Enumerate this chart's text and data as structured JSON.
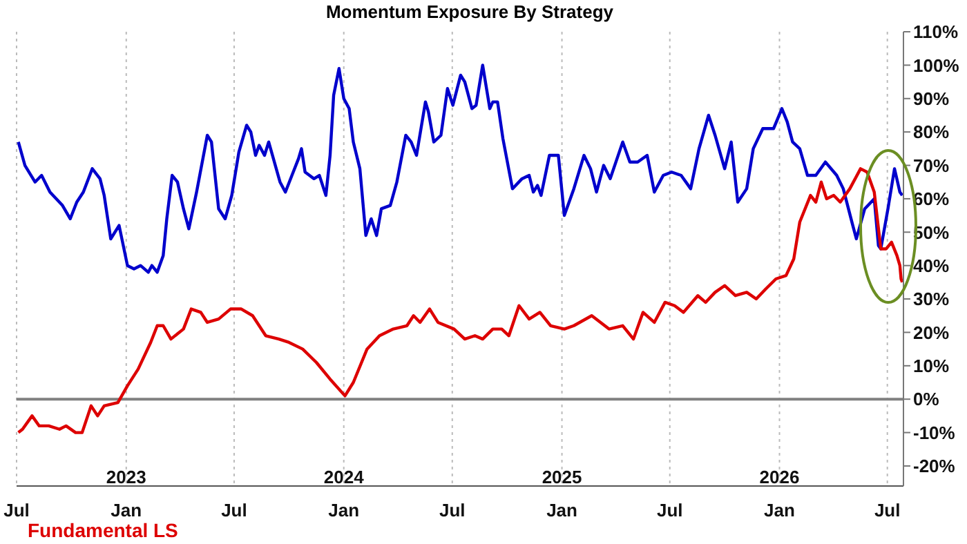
{
  "chart_data": {
    "type": "line",
    "title": "Momentum Exposure By Strategy",
    "xlim": [
      "2022-07-01",
      "2026-07-28"
    ],
    "xticks": [
      {
        "value": "2022-07-01",
        "label": "Jul"
      },
      {
        "value": "2023-01-01",
        "label": "Jan"
      },
      {
        "value": "2023-07-01",
        "label": "Jul"
      },
      {
        "value": "2024-01-01",
        "label": "Jan"
      },
      {
        "value": "2024-07-01",
        "label": "Jul"
      },
      {
        "value": "2025-01-01",
        "label": "Jan"
      },
      {
        "value": "2025-07-01",
        "label": "Jul"
      },
      {
        "value": "2026-01-01",
        "label": "Jan"
      },
      {
        "value": "2026-07-01",
        "label": "Jul"
      }
    ],
    "x2lim": [
      "2022-07-01",
      "2026-07-28"
    ],
    "x2ticks": [
      {
        "value": "2023-01-01",
        "label": "2023"
      },
      {
        "value": "2024-01-01",
        "label": "2024"
      },
      {
        "value": "2025-01-01",
        "label": "2025"
      },
      {
        "value": "2026-01-01",
        "label": "2026"
      }
    ],
    "ylim": [
      -26,
      110
    ],
    "yticks": [
      {
        "value": -20,
        "label": "-20%"
      },
      {
        "value": -10,
        "label": "-10%"
      },
      {
        "value": 0,
        "label": "0%"
      },
      {
        "value": 10,
        "label": "10%"
      },
      {
        "value": 20,
        "label": "20%"
      },
      {
        "value": 30,
        "label": "30%"
      },
      {
        "value": 40,
        "label": "40%"
      },
      {
        "value": 50,
        "label": "50%"
      },
      {
        "value": 60,
        "label": "60%"
      },
      {
        "value": 70,
        "label": "70%"
      },
      {
        "value": 80,
        "label": "80%"
      },
      {
        "value": 90,
        "label": "90%"
      },
      {
        "value": 100,
        "label": "100%"
      },
      {
        "value": 110,
        "label": "110%"
      }
    ],
    "grid": "x",
    "legend": "bottom left",
    "tick_labels": "xy",
    "ref_lines": [
      {
        "axis": "y",
        "value": 0,
        "color": "#808080"
      }
    ],
    "series": [
      {
        "color": "#0000cc",
        "x": [
          "2022-07-04",
          "2022-07-15",
          "2022-08-01",
          "2022-08-12",
          "2022-08-26",
          "2022-09-16",
          "2022-09-29",
          "2022-10-10",
          "2022-10-21",
          "2022-11-05",
          "2022-11-18",
          "2022-11-25",
          "2022-12-06",
          "2022-12-20",
          "2023-01-03",
          "2023-01-14",
          "2023-01-25",
          "2023-02-07",
          "2023-02-13",
          "2023-02-22",
          "2023-03-04",
          "2023-03-10",
          "2023-03-19",
          "2023-03-28",
          "2023-04-07",
          "2023-04-16",
          "2023-04-29",
          "2023-05-17",
          "2023-05-24",
          "2023-06-05",
          "2023-06-16",
          "2023-06-27",
          "2023-07-09",
          "2023-07-22",
          "2023-07-29",
          "2023-08-06",
          "2023-08-12",
          "2023-08-21",
          "2023-08-28",
          "2023-09-16",
          "2023-09-25",
          "2023-10-06",
          "2023-10-17",
          "2023-10-22",
          "2023-10-28",
          "2023-11-12",
          "2023-11-21",
          "2023-12-02",
          "2023-12-09",
          "2023-12-15",
          "2023-12-24",
          "2024-01-01",
          "2024-01-10",
          "2024-01-17",
          "2024-01-28",
          "2024-02-07",
          "2024-02-16",
          "2024-02-25",
          "2024-03-04",
          "2024-03-19",
          "2024-03-30",
          "2024-04-14",
          "2024-04-23",
          "2024-05-02",
          "2024-05-17",
          "2024-05-22",
          "2024-05-31",
          "2024-06-12",
          "2024-06-23",
          "2024-07-02",
          "2024-07-15",
          "2024-07-22",
          "2024-08-03",
          "2024-08-10",
          "2024-08-21",
          "2024-09-02",
          "2024-09-07",
          "2024-09-15",
          "2024-09-24",
          "2024-10-10",
          "2024-10-26",
          "2024-11-07",
          "2024-11-14",
          "2024-11-21",
          "2024-11-27",
          "2024-12-11",
          "2024-12-17",
          "2024-12-26",
          "2025-01-05",
          "2025-01-21",
          "2025-02-07",
          "2025-02-18",
          "2025-02-28",
          "2025-03-12",
          "2025-03-23",
          "2025-04-13",
          "2025-04-25",
          "2025-05-08",
          "2025-05-24",
          "2025-06-05",
          "2025-06-20",
          "2025-07-04",
          "2025-07-20",
          "2025-08-05",
          "2025-08-19",
          "2025-09-04",
          "2025-09-15",
          "2025-10-01",
          "2025-10-12",
          "2025-10-23",
          "2025-11-07",
          "2025-11-18",
          "2025-12-04",
          "2025-12-22",
          "2026-01-05",
          "2026-01-14",
          "2026-01-23",
          "2026-02-04",
          "2026-02-17",
          "2026-03-03",
          "2026-03-19",
          "2026-04-07",
          "2026-04-18",
          "2026-05-04",
          "2026-05-10",
          "2026-05-24",
          "2026-06-09",
          "2026-06-16",
          "2026-06-20",
          "2026-07-02",
          "2026-07-13",
          "2026-07-22",
          "2026-07-26"
        ],
        "values": [
          77,
          70,
          65,
          67,
          62,
          58,
          54,
          59,
          62,
          69,
          66,
          61,
          48,
          52,
          40,
          39,
          40,
          38,
          40,
          38,
          43,
          54,
          67,
          65,
          57,
          51,
          62,
          79,
          77,
          57,
          54,
          61,
          74,
          82,
          80,
          73,
          76,
          73,
          77,
          65,
          62,
          67,
          72,
          75,
          68,
          66,
          67,
          61,
          73,
          91,
          99,
          90,
          87,
          77,
          69,
          49,
          54,
          49,
          57,
          58,
          65,
          79,
          77,
          73,
          89,
          86,
          77,
          79,
          93,
          88,
          97,
          95,
          87,
          88,
          100,
          87,
          89,
          89,
          78,
          63,
          66,
          67,
          62,
          64,
          61,
          73,
          73,
          73,
          55,
          63,
          73,
          69,
          62,
          70,
          66,
          77,
          71,
          71,
          73,
          62,
          67,
          68,
          67,
          63,
          75,
          85,
          79,
          69,
          77,
          59,
          63,
          75,
          81,
          81,
          87,
          83,
          77,
          75,
          67,
          67,
          71,
          67,
          63,
          52,
          48,
          57,
          60,
          46,
          45,
          57,
          69,
          62,
          61
        ]
      },
      {
        "name": "Fundamental LS",
        "color": "#dd0000",
        "x": [
          "2022-07-04",
          "2022-07-11",
          "2022-07-27",
          "2022-08-08",
          "2022-08-24",
          "2022-09-11",
          "2022-09-22",
          "2022-10-08",
          "2022-10-19",
          "2022-11-03",
          "2022-11-14",
          "2022-11-25",
          "2022-12-18",
          "2023-01-03",
          "2023-01-21",
          "2023-02-11",
          "2023-02-22",
          "2023-03-04",
          "2023-03-17",
          "2023-04-07",
          "2023-04-20",
          "2023-05-06",
          "2023-05-17",
          "2023-06-05",
          "2023-06-25",
          "2023-07-13",
          "2023-08-01",
          "2023-08-23",
          "2023-09-14",
          "2023-10-01",
          "2023-10-24",
          "2023-11-16",
          "2023-12-09",
          "2024-01-03",
          "2024-01-17",
          "2024-02-09",
          "2024-03-01",
          "2024-03-24",
          "2024-04-16",
          "2024-04-27",
          "2024-05-08",
          "2024-05-24",
          "2024-06-07",
          "2024-07-04",
          "2024-07-22",
          "2024-08-08",
          "2024-08-21",
          "2024-09-07",
          "2024-09-22",
          "2024-10-04",
          "2024-10-21",
          "2024-11-07",
          "2024-11-25",
          "2024-12-13",
          "2025-01-05",
          "2025-01-21",
          "2025-02-20",
          "2025-03-21",
          "2025-04-13",
          "2025-05-01",
          "2025-05-17",
          "2025-06-05",
          "2025-06-23",
          "2025-07-09",
          "2025-07-24",
          "2025-08-17",
          "2025-08-30",
          "2025-09-15",
          "2025-10-01",
          "2025-10-19",
          "2025-11-07",
          "2025-11-23",
          "2025-12-09",
          "2025-12-26",
          "2026-01-12",
          "2026-01-25",
          "2026-02-04",
          "2026-02-22",
          "2026-03-03",
          "2026-03-12",
          "2026-03-21",
          "2026-04-02",
          "2026-04-13",
          "2026-04-29",
          "2026-05-17",
          "2026-05-28",
          "2026-06-09",
          "2026-06-20",
          "2026-06-29",
          "2026-07-08",
          "2026-07-17",
          "2026-07-22",
          "2026-07-24",
          "2026-07-26"
        ],
        "values": [
          -10,
          -9,
          -5,
          -8,
          -8,
          -9,
          -8,
          -10,
          -10,
          -2,
          -5,
          -2,
          -1,
          4,
          9,
          17,
          22,
          22,
          18,
          21,
          27,
          26,
          23,
          24,
          27,
          27,
          25,
          19,
          18,
          17,
          15,
          11,
          6,
          1,
          5,
          15,
          19,
          21,
          22,
          25,
          23,
          27,
          23,
          21,
          18,
          19,
          18,
          21,
          21,
          19,
          28,
          24,
          26,
          22,
          21,
          22,
          25,
          21,
          22,
          18,
          26,
          23,
          29,
          28,
          26,
          31,
          29,
          32,
          34,
          31,
          32,
          30,
          33,
          36,
          37,
          42,
          53,
          61,
          59,
          65,
          60,
          61,
          59,
          63,
          69,
          68,
          62,
          45,
          45,
          47,
          43,
          40,
          36,
          35
        ]
      }
    ]
  }
}
